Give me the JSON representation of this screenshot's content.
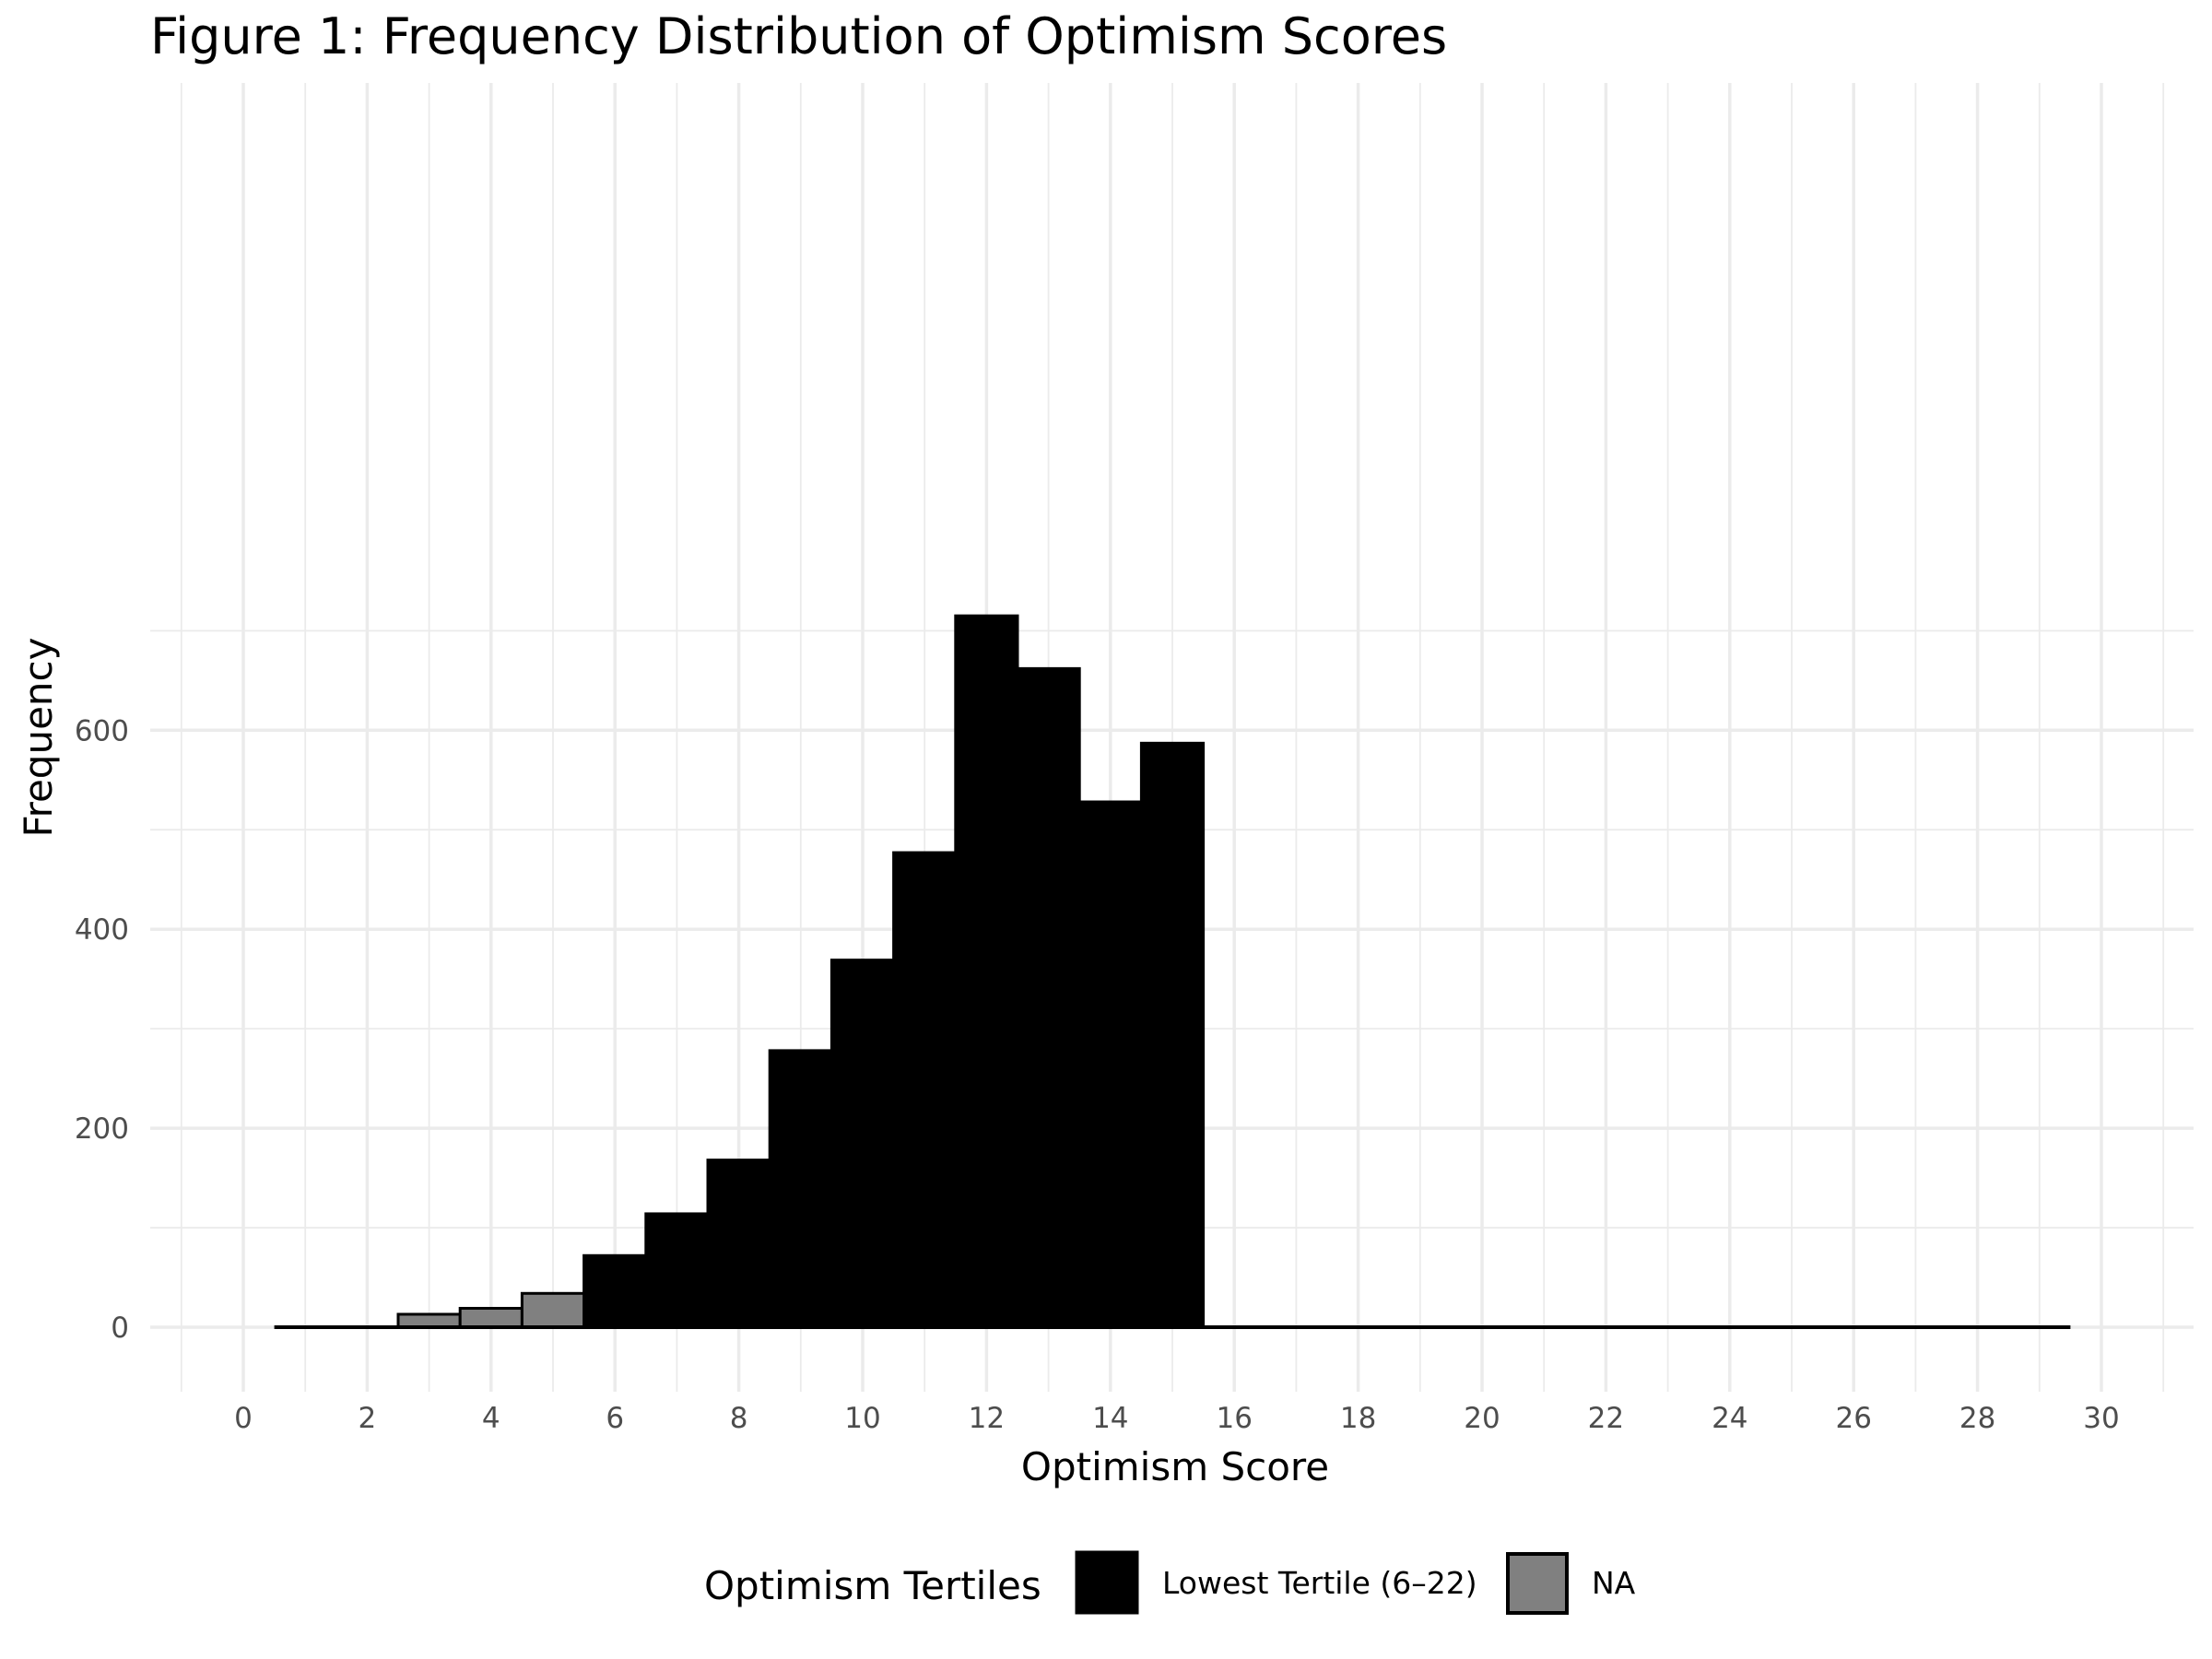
{
  "chart_data": {
    "type": "bar",
    "title": "Figure 1: Frequency Distribution of Optimism Scores",
    "xlabel": "Optimism Score",
    "ylabel": "Frequency",
    "xlim": [
      -1,
      31
    ],
    "ylim": [
      -45,
      715
    ],
    "xticks": [
      0,
      2,
      4,
      6,
      8,
      10,
      12,
      14,
      16,
      18,
      20,
      22,
      24,
      26,
      28,
      30
    ],
    "yticks": [
      0,
      200,
      400,
      600
    ],
    "grid": true,
    "legend": {
      "title": "Optimism Tertiles",
      "position": "bottom",
      "entries": [
        {
          "label": "Lowest Tertile (6–22)",
          "color": "#000000"
        },
        {
          "label": "NA",
          "color": "#808080"
        }
      ]
    },
    "series": [
      {
        "name": "Lowest Tertile (6–22)",
        "color": "#000000",
        "x": [
          1,
          2,
          3,
          4,
          5,
          6,
          7,
          8,
          9,
          10,
          11,
          12,
          13,
          14,
          15,
          16,
          17,
          18,
          19,
          20,
          21,
          22,
          23,
          24,
          25,
          26,
          27,
          28,
          29
        ],
        "values": [
          0,
          0,
          0,
          0,
          0,
          72,
          114,
          168,
          278,
          369,
          477,
          715,
          662,
          528,
          587,
          0,
          0,
          0,
          0,
          0,
          0,
          0,
          0,
          0,
          0,
          0,
          0,
          0,
          0
        ]
      },
      {
        "name": "NA",
        "color": "#808080",
        "x": [
          1,
          2,
          3,
          4,
          5,
          6,
          7,
          8,
          9,
          10,
          11,
          12,
          13,
          14,
          15,
          16,
          17,
          18,
          19,
          20,
          21,
          22,
          23,
          24,
          25,
          26,
          27,
          28,
          29
        ],
        "values": [
          0,
          0,
          13,
          19,
          34,
          0,
          0,
          0,
          0,
          0,
          0,
          0,
          0,
          0,
          0,
          0,
          0,
          0,
          0,
          0,
          0,
          0,
          0,
          0,
          0,
          0,
          0,
          0,
          0
        ]
      }
    ]
  }
}
